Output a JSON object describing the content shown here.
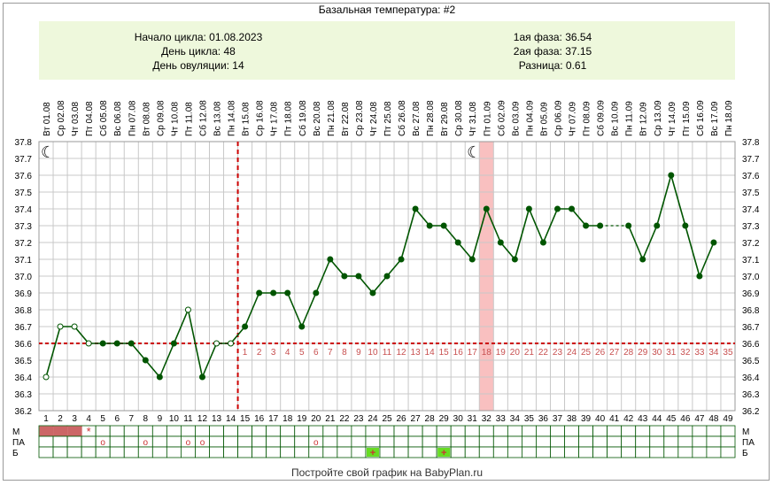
{
  "title": "Базальная температура: #2",
  "info_left": {
    "cycle_start": "Начало цикла: 01.08.2023",
    "cycle_day": "День цикла: 48",
    "ovulation_day": "День овуляции: 14"
  },
  "info_right": {
    "phase1": "1ая фаза: 36.54",
    "phase2": "2ая фаза: 37.15",
    "difference": "Разница: 0.61"
  },
  "footer": "Постройте свой график на BabyPlan.ru",
  "colors": {
    "line": "#005500",
    "grid": "#c8c8c8",
    "coverline": "#cc0000",
    "highlight": "#f9c0c0",
    "period": "#cc6666",
    "marker_b": "#66dd22"
  },
  "chart_data": {
    "type": "line",
    "xlabel": "",
    "ylabel": "",
    "ylim": [
      36.2,
      37.8
    ],
    "y_ticks": [
      "36.2",
      "36.3",
      "36.4",
      "36.5",
      "36.6",
      "36.7",
      "36.8",
      "36.9",
      "37.0",
      "37.1",
      "37.2",
      "37.3",
      "37.4",
      "37.5",
      "37.6",
      "37.7",
      "37.8"
    ],
    "date_labels": [
      "Вт 01.08",
      "Ср 02.08",
      "Чт 03.08",
      "Пт 04.08",
      "Сб 05.08",
      "Вс 06.08",
      "Пн 07.08",
      "Вт 08.08",
      "Ср 09.08",
      "Чт 10.08",
      "Пт 11.08",
      "Сб 12.08",
      "Вс 13.08",
      "Пн 14.08",
      "Вт 15.08",
      "Ср 16.08",
      "Чт 17.08",
      "Пт 18.08",
      "Сб 19.08",
      "Вс 20.08",
      "Пн 21.08",
      "Вт 22.08",
      "Ср 23.08",
      "Чт 24.08",
      "Пт 25.08",
      "Сб 26.08",
      "Вс 27.08",
      "Пн 28.08",
      "Вт 29.08",
      "Ср 30.08",
      "Чт 31.08",
      "Пт 01.09",
      "Сб 02.09",
      "Вс 03.09",
      "Пн 04.09",
      "Вт 05.09",
      "Ср 06.09",
      "Чт 07.09",
      "Пт 08.09",
      "Сб 09.09",
      "Вс 10.09",
      "Пн 11.09",
      "Вт 12.09",
      "Ср 13.09",
      "Чт 14.09",
      "Пт 15.09",
      "Сб 16.09",
      "Вс 17.09",
      "Пн 18.09"
    ],
    "days": [
      1,
      2,
      3,
      4,
      5,
      6,
      7,
      8,
      9,
      10,
      11,
      12,
      13,
      14,
      15,
      16,
      17,
      18,
      19,
      20,
      21,
      22,
      23,
      24,
      25,
      26,
      27,
      28,
      29,
      30,
      31,
      32,
      33,
      34,
      35,
      36,
      37,
      38,
      39,
      40,
      41,
      42,
      43,
      44,
      45,
      46,
      47,
      48,
      49
    ],
    "temperatures": [
      36.4,
      36.7,
      36.7,
      36.6,
      36.6,
      36.6,
      36.6,
      36.5,
      36.4,
      36.6,
      36.8,
      36.4,
      36.6,
      36.6,
      36.7,
      36.9,
      36.9,
      36.9,
      36.7,
      36.9,
      37.1,
      37.0,
      37.0,
      36.9,
      37.0,
      37.1,
      37.4,
      37.3,
      37.3,
      37.2,
      37.1,
      37.4,
      37.2,
      37.1,
      37.4,
      37.2,
      37.4,
      37.4,
      37.3,
      37.3,
      null,
      37.3,
      37.1,
      37.3,
      37.6,
      37.3,
      37.0,
      37.2,
      null
    ],
    "open_markers": [
      1,
      2,
      3,
      4,
      11,
      13,
      14
    ],
    "dotted_segment": [
      40,
      42
    ],
    "coverline": 36.6,
    "ovulation_day": 14,
    "highlight_day": 32,
    "moon_days": [
      1,
      31
    ],
    "phase2_day_labels": [
      "1",
      "2",
      "3",
      "4",
      "5",
      "6",
      "7",
      "8",
      "9",
      "10",
      "11",
      "12",
      "13",
      "14",
      "15",
      "16",
      "17",
      "18",
      "19",
      "20",
      "21",
      "22",
      "23",
      "24",
      "25",
      "26",
      "27",
      "28",
      "29",
      "30",
      "31",
      "32",
      "33",
      "34",
      "35"
    ],
    "bottom_rows": [
      {
        "label": "М",
        "label_right": "М"
      },
      {
        "label": "ПА",
        "label_right": "ПА"
      },
      {
        "label": "Б",
        "label_right": "Б"
      }
    ],
    "period_days": [
      1,
      2,
      3
    ],
    "star_day": 4,
    "star_symbol": "*",
    "pa_days": [
      5,
      8,
      11,
      12,
      20
    ],
    "pa_symbol": "o",
    "b_days": [
      24,
      29
    ],
    "b_symbol": "+"
  }
}
